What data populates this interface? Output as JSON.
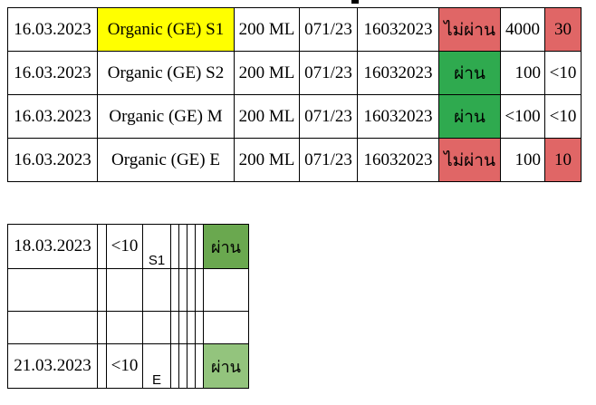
{
  "colors": {
    "yellow": "#ffff00",
    "red": "#e06666",
    "green": "#2faa4f",
    "green_dark": "#6aa84f",
    "green_light": "#93c47d"
  },
  "main_rows": [
    {
      "date": "16.03.2023",
      "product": "Organic (GE) S1",
      "volume": "200 ML",
      "lot": "071/23",
      "batch": "16032023",
      "result": "ไม่ผ่าน",
      "count": "4000",
      "limit": "30"
    },
    {
      "date": "16.03.2023",
      "product": "Organic (GE) S2",
      "volume": "200 ML",
      "lot": "071/23",
      "batch": "16032023",
      "result": "ผ่าน",
      "count": "100",
      "limit": "<10"
    },
    {
      "date": "16.03.2023",
      "product": "Organic (GE) M",
      "volume": "200 ML",
      "lot": "071/23",
      "batch": "16032023",
      "result": "ผ่าน",
      "count": "<100",
      "limit": "<10"
    },
    {
      "date": "16.03.2023",
      "product": "Organic (GE) E",
      "volume": "200 ML",
      "lot": "071/23",
      "batch": "16032023",
      "result": "ไม่ผ่าน",
      "count": "100",
      "limit": "10"
    }
  ],
  "sub_rows": [
    {
      "date": "18.03.2023",
      "value": "<10",
      "code": "S1",
      "result": "ผ่าน"
    },
    {
      "date": "",
      "value": "",
      "code": "",
      "result": ""
    },
    {
      "date": "",
      "value": "",
      "code": "",
      "result": ""
    },
    {
      "date": "21.03.2023",
      "value": "<10",
      "code": "E",
      "result": "ผ่าน"
    }
  ]
}
